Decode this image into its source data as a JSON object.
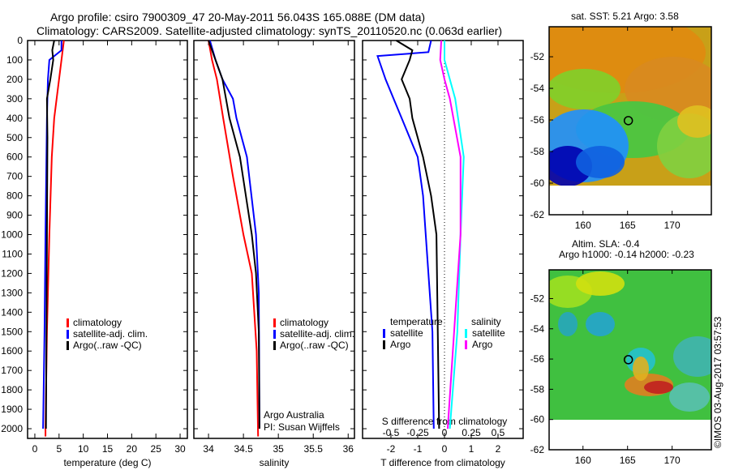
{
  "title_line1": "Argo profile: csiro 7900309_47 20-May-2011 56.043S 165.088E (DM data)",
  "title_line2": "Climatology: CARS2009. Satellite-adjusted climatology: synTS_20110520.nc (0.063d earlier)",
  "colors": {
    "climatology": "#ff0000",
    "satellite": "#0000ff",
    "argo": "#000000",
    "sat_salinity": "#00ffff",
    "argo_salinity": "#ff00ff"
  },
  "chart_data": [
    {
      "type": "line",
      "xlabel": "temperature (deg C)",
      "ylabel": "depth",
      "xlim": [
        -1.5,
        31.5
      ],
      "ylim": [
        2050,
        0
      ],
      "xticks": [
        0,
        5,
        10,
        15,
        20,
        25,
        30
      ],
      "yticks": [
        0,
        100,
        200,
        300,
        400,
        500,
        600,
        700,
        800,
        900,
        1000,
        1100,
        1200,
        1300,
        1400,
        1500,
        1600,
        1700,
        1800,
        1900,
        2000
      ],
      "legend": [
        "climatology",
        "satellite-adj. clim.",
        "Argo(..raw -QC)"
      ],
      "series": [
        {
          "name": "climatology",
          "color": "#ff0000",
          "depth": [
            0,
            100,
            200,
            400,
            600,
            1000,
            1500,
            2000,
            2040
          ],
          "values": [
            6,
            5.5,
            5,
            4,
            3.5,
            3,
            2.5,
            2.2,
            2.2
          ]
        },
        {
          "name": "satellite-adj. clim.",
          "color": "#0000ff",
          "depth": [
            0,
            50,
            100,
            200,
            400,
            1000,
            1500,
            2000
          ],
          "values": [
            5.5,
            5.5,
            3,
            2.7,
            2.5,
            2.2,
            2,
            1.7
          ]
        },
        {
          "name": "Argo(..raw -QC)",
          "color": "#000000",
          "depth": [
            0,
            50,
            100,
            200,
            300,
            500,
            1000,
            2000
          ],
          "values": [
            4,
            3.6,
            3.8,
            3.2,
            2.5,
            2.6,
            2.5,
            2.3
          ]
        }
      ]
    },
    {
      "type": "line",
      "xlabel": "salinity",
      "xlim": [
        33.79,
        36.09
      ],
      "ylim": [
        2050,
        0
      ],
      "xticks": [
        34,
        34.5,
        35,
        35.5,
        36
      ],
      "legend": [
        "climatology",
        "satellite-adj. clim.",
        "Argo(..raw -QC)"
      ],
      "annotation": [
        "Argo Australia",
        "PI: Susan Wijffels"
      ],
      "series": [
        {
          "name": "climatology",
          "color": "#ff0000",
          "depth": [
            0,
            100,
            200,
            400,
            700,
            1000,
            1200,
            1600,
            2040
          ],
          "values": [
            34.0,
            34.05,
            34.12,
            34.21,
            34.35,
            34.5,
            34.62,
            34.69,
            34.71
          ]
        },
        {
          "name": "satellite-adj. clim.",
          "color": "#0000ff",
          "depth": [
            0,
            100,
            200,
            300,
            400,
            600,
            1000,
            1300,
            2000
          ],
          "values": [
            34.02,
            34.1,
            34.2,
            34.35,
            34.4,
            34.55,
            34.68,
            34.72,
            34.73
          ]
        },
        {
          "name": "Argo(..raw -QC)",
          "color": "#000000",
          "depth": [
            0,
            100,
            200,
            300,
            400,
            600,
            1000,
            1200,
            1500,
            2000
          ],
          "values": [
            34.0,
            34.1,
            34.2,
            34.25,
            34.3,
            34.45,
            34.62,
            34.68,
            34.72,
            34.73
          ]
        }
      ]
    },
    {
      "type": "line",
      "xlabel": "T difference from climatology",
      "x2label": "S difference from climatology",
      "xlim": [
        -3.06,
        2.94
      ],
      "ylim": [
        2050,
        0
      ],
      "xticks": [
        -2,
        -1,
        0,
        1,
        2
      ],
      "x2ticks": [
        -0.5,
        -0.25,
        0,
        0.25,
        0.5
      ],
      "legend_titles": [
        "temperature",
        "salinity"
      ],
      "legend": [
        "satellite",
        "Argo",
        "satellite",
        "Argo"
      ],
      "series": [
        {
          "name": "temperature satellite",
          "color": "#0000ff",
          "axis": "T",
          "depth": [
            0,
            60,
            80,
            200,
            400,
            600,
            800,
            1000,
            1500,
            2000
          ],
          "values": [
            -0.5,
            -0.6,
            -2.5,
            -2.2,
            -1.6,
            -1.0,
            -0.8,
            -0.7,
            -0.45,
            -0.4
          ]
        },
        {
          "name": "temperature Argo",
          "color": "#000000",
          "axis": "T",
          "depth": [
            0,
            50,
            100,
            200,
            300,
            400,
            600,
            800,
            1000,
            1500,
            2000
          ],
          "values": [
            -1.8,
            -1.2,
            -1.3,
            -1.6,
            -1.3,
            -1.2,
            -0.8,
            -0.5,
            -0.3,
            -0.25,
            -0.2
          ]
        },
        {
          "name": "salinity satellite",
          "color": "#00ffff",
          "axis": "S",
          "depth": [
            0,
            100,
            300,
            600,
            1000,
            1500,
            2000
          ],
          "values": [
            0.0,
            0.0,
            0.1,
            0.18,
            0.15,
            0.12,
            0.05
          ]
        },
        {
          "name": "salinity Argo",
          "color": "#ff00ff",
          "axis": "S",
          "depth": [
            0,
            100,
            200,
            300,
            600,
            1000,
            1500,
            2000
          ],
          "values": [
            -0.03,
            -0.04,
            0,
            0.05,
            0.15,
            0.15,
            0.09,
            0.03
          ]
        }
      ]
    }
  ],
  "map1": {
    "title": "sat. SST: 5.21  Argo: 3.58",
    "xticks": [
      160,
      165,
      170
    ],
    "yticks": [
      -52,
      -54,
      -56,
      -58,
      -60,
      -62
    ]
  },
  "map2": {
    "title1": "Altim. SLA: -0.4",
    "title2": "Argo h1000: -0.14 h2000: -0.23",
    "xticks": [
      160,
      165,
      170
    ],
    "yticks": [
      -52,
      -54,
      -56,
      -58,
      -60,
      -62
    ]
  },
  "credit": "©IMOS 03-Aug-2017 03:57:53"
}
